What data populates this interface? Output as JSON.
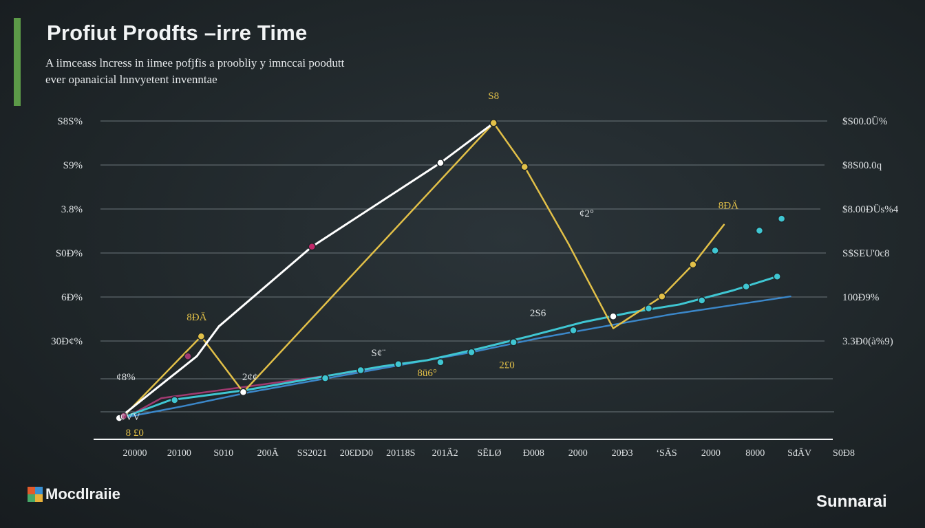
{
  "header": {
    "title": "Profiut Prodfts –irre Time",
    "subtitle_line1": "A iimceass  lncress in iimee pofjfis a proobliy y imnccai  poodutt",
    "subtitle_line2": "ever opanaicial lnnvyetent  invenntae"
  },
  "branding": {
    "left_logo": "Mocdlraiie",
    "right_logo": "Sunnarai"
  },
  "colors": {
    "background": "#1f2629",
    "accent_bar": "#5c9a48",
    "white_series": "#ffffff",
    "gold_series": "#e2c048",
    "teal_series": "#3fc6d2",
    "blue_series": "#3b87c9",
    "magenta_series": "#a03a70"
  },
  "chart_data": {
    "type": "line",
    "title": "Profiut Prodfts –irre Time",
    "x_ticks": [
      "20000",
      "20100",
      "S010",
      "200Ä",
      "SS2021",
      "20ƐDD0",
      "20118S",
      "201Ä2",
      "SĒLØ",
      "Ð008",
      "2000",
      "20Ð3",
      "‘SÄS",
      "2000",
      "8000",
      "SđÄV",
      "S0Ð8"
    ],
    "x_index": [
      0,
      1,
      2,
      3,
      4,
      5,
      6,
      7,
      8,
      9,
      10,
      11,
      12,
      13,
      14,
      15,
      16
    ],
    "y_ticks_left": [
      "S8S%",
      "S9%",
      "3.8%",
      "S0Ð%",
      "6Ð%",
      "30Ð¢%"
    ],
    "y_ticks_right": [
      "$S00.0Ü%",
      "$8S00.0q",
      "$8.00ÐÜs%4",
      "S$SEU'0c8",
      "100Ð9%",
      "3.3Ð0(à%9)"
    ],
    "y_value_range": [
      0,
      8
    ],
    "grid": true,
    "series": [
      {
        "key": "white",
        "points": [
          [
            0.05,
            0.55
          ],
          [
            1.8,
            2.1
          ],
          [
            2.3,
            2.85
          ],
          [
            4.4,
            4.85
          ],
          [
            7.3,
            6.95
          ],
          [
            8.5,
            7.95
          ]
        ]
      },
      {
        "key": "gold",
        "points": [
          [
            0.15,
            0.6
          ],
          [
            1.9,
            2.6
          ],
          [
            2.85,
            1.2
          ],
          [
            8.5,
            7.95
          ],
          [
            9.2,
            6.85
          ],
          [
            10.2,
            4.9
          ],
          [
            11.2,
            2.8
          ],
          [
            12.3,
            3.6
          ],
          [
            13.0,
            4.4
          ],
          [
            13.7,
            5.4
          ]
        ]
      },
      {
        "key": "teal",
        "points": [
          [
            0.1,
            0.55
          ],
          [
            1.2,
            1.0
          ],
          [
            2.9,
            1.25
          ],
          [
            4.7,
            1.6
          ],
          [
            6.0,
            1.85
          ],
          [
            7.0,
            2.0
          ],
          [
            8.2,
            2.3
          ],
          [
            9.3,
            2.6
          ],
          [
            10.5,
            2.95
          ],
          [
            11.6,
            3.2
          ],
          [
            12.7,
            3.4
          ],
          [
            13.9,
            3.75
          ],
          [
            14.9,
            4.1
          ]
        ]
      },
      {
        "key": "blue",
        "points": [
          [
            0.1,
            0.55
          ],
          [
            1.5,
            0.85
          ],
          [
            3.0,
            1.2
          ],
          [
            5.0,
            1.6
          ],
          [
            6.5,
            1.9
          ],
          [
            8.0,
            2.2
          ],
          [
            9.5,
            2.55
          ],
          [
            11.0,
            2.85
          ],
          [
            12.5,
            3.15
          ],
          [
            14.0,
            3.4
          ],
          [
            15.2,
            3.6
          ]
        ]
      },
      {
        "key": "magenta",
        "points": [
          [
            0.1,
            0.5
          ],
          [
            1.0,
            1.05
          ],
          [
            3.0,
            1.35
          ],
          [
            5.0,
            1.65
          ],
          [
            6.4,
            1.9
          ]
        ]
      }
    ],
    "markers": [
      {
        "x": 0.05,
        "y": 0.55,
        "color": "#ffffff"
      },
      {
        "x": 0.15,
        "y": 0.6,
        "color": "#a03a70"
      },
      {
        "x": 1.3,
        "y": 1.0,
        "color": "#3fc6d2"
      },
      {
        "x": 1.6,
        "y": 2.1,
        "color": "#a03a70"
      },
      {
        "x": 1.9,
        "y": 2.6,
        "color": "#e2c048"
      },
      {
        "x": 2.85,
        "y": 1.2,
        "color": "#ffffff"
      },
      {
        "x": 4.4,
        "y": 4.85,
        "color": "#c2286a"
      },
      {
        "x": 4.7,
        "y": 1.55,
        "color": "#3fc6d2"
      },
      {
        "x": 5.5,
        "y": 1.75,
        "color": "#3fc6d2"
      },
      {
        "x": 6.35,
        "y": 1.9,
        "color": "#3fc6d2"
      },
      {
        "x": 7.3,
        "y": 1.95,
        "color": "#3fc6d2"
      },
      {
        "x": 7.3,
        "y": 6.95,
        "color": "#ffffff"
      },
      {
        "x": 8.0,
        "y": 2.2,
        "color": "#3fc6d2"
      },
      {
        "x": 8.5,
        "y": 7.95,
        "color": "#e2c048"
      },
      {
        "x": 8.95,
        "y": 2.45,
        "color": "#3fc6d2"
      },
      {
        "x": 9.2,
        "y": 6.85,
        "color": "#e2c048"
      },
      {
        "x": 10.3,
        "y": 2.75,
        "color": "#3fc6d2"
      },
      {
        "x": 11.2,
        "y": 3.1,
        "color": "#ffffff"
      },
      {
        "x": 12.0,
        "y": 3.3,
        "color": "#3fc6d2"
      },
      {
        "x": 12.3,
        "y": 3.6,
        "color": "#e2c048"
      },
      {
        "x": 13.0,
        "y": 4.4,
        "color": "#e2c048"
      },
      {
        "x": 13.2,
        "y": 3.5,
        "color": "#3fc6d2"
      },
      {
        "x": 13.5,
        "y": 4.75,
        "color": "#3fc6d2"
      },
      {
        "x": 14.2,
        "y": 3.85,
        "color": "#3fc6d2"
      },
      {
        "x": 14.5,
        "y": 5.25,
        "color": "#3fc6d2"
      },
      {
        "x": 14.9,
        "y": 4.1,
        "color": "#3fc6d2"
      },
      {
        "x": 15.0,
        "y": 5.55,
        "color": "#3fc6d2"
      }
    ],
    "annotations": [
      {
        "text": "S8",
        "x": 8.5,
        "y": 8.55,
        "color": "#e2c048"
      },
      {
        "text": "8ÐÄ",
        "x": 1.8,
        "y": 3.0,
        "color": "#e2c048"
      },
      {
        "text": "¢8%",
        "x": 0.2,
        "y": 1.5,
        "color": "#dfe3e5"
      },
      {
        "text": "8 £0",
        "x": 0.4,
        "y": 0.1,
        "color": "#e2c048"
      },
      {
        "text": "¢VV",
        "x": 0.3,
        "y": 0.5,
        "color": "#dfe3e5"
      },
      {
        "text": "2¢¢",
        "x": 3.0,
        "y": 1.5,
        "color": "#dfe3e5"
      },
      {
        "text": "S¢¨",
        "x": 5.9,
        "y": 2.1,
        "color": "#dfe3e5"
      },
      {
        "text": "8ū6°",
        "x": 7.0,
        "y": 1.6,
        "color": "#e2c048"
      },
      {
        "text": "2£0",
        "x": 8.8,
        "y": 1.8,
        "color": "#e2c048"
      },
      {
        "text": "2S6",
        "x": 9.5,
        "y": 3.1,
        "color": "#dfe3e5"
      },
      {
        "text": "¢2°",
        "x": 10.6,
        "y": 5.6,
        "color": "#dfe3e5"
      },
      {
        "text": "8ÐÄ",
        "x": 13.8,
        "y": 5.8,
        "color": "#e2c048"
      }
    ]
  }
}
